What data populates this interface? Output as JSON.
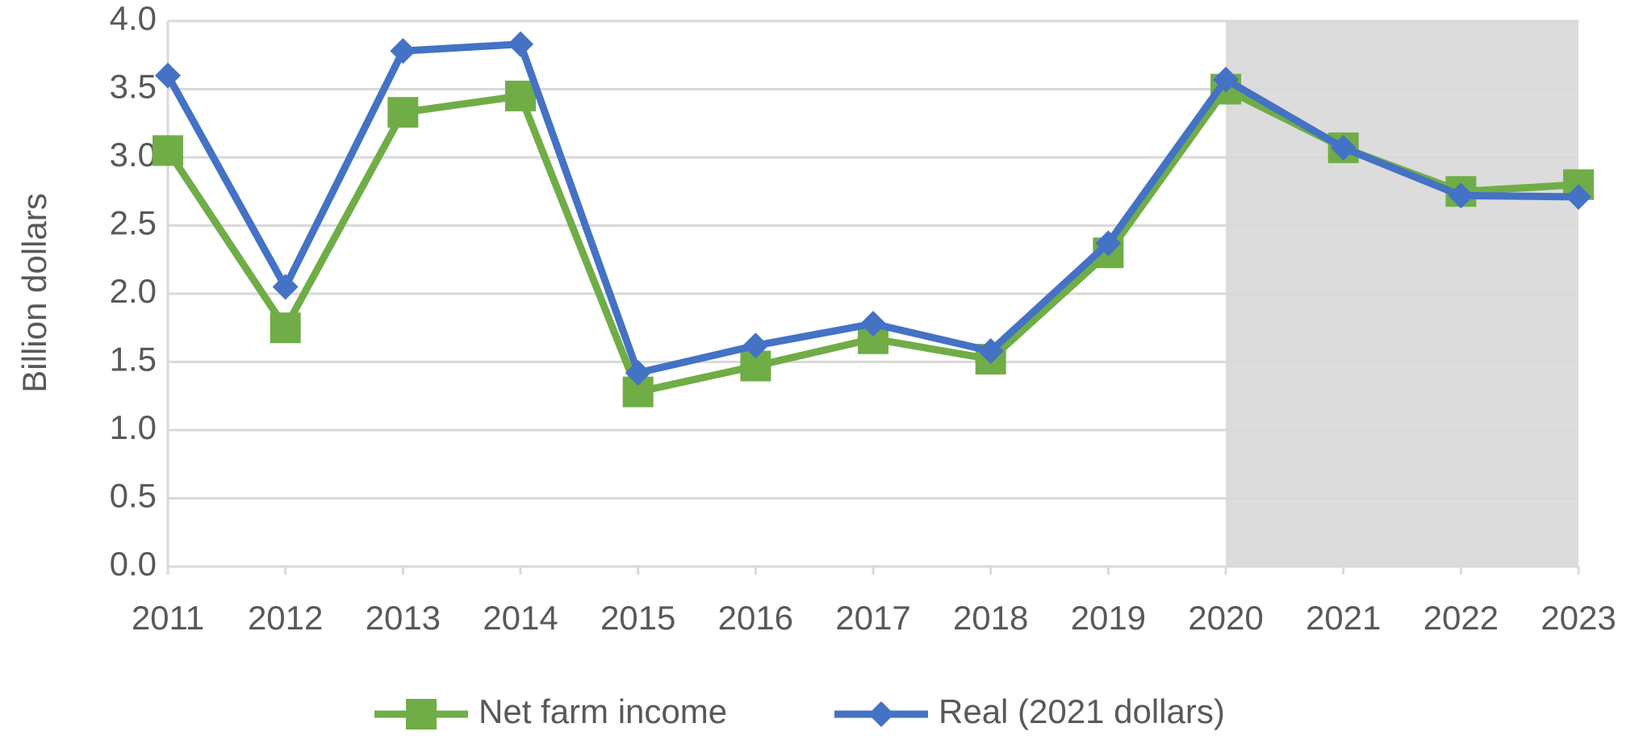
{
  "chart_data": {
    "type": "line",
    "y_label": "Billion dollars",
    "categories": [
      "2011",
      "2012",
      "2013",
      "2014",
      "2015",
      "2016",
      "2017",
      "2018",
      "2019",
      "2020",
      "2021",
      "2022",
      "2023"
    ],
    "series": [
      {
        "name": "Net farm income",
        "color": "#70ad47",
        "marker": "square",
        "values": [
          3.05,
          1.75,
          3.33,
          3.45,
          1.28,
          1.47,
          1.67,
          1.52,
          2.3,
          3.5,
          3.07,
          2.75,
          2.8
        ]
      },
      {
        "name": "Real (2021 dollars)",
        "color": "#4472c4",
        "marker": "diamond",
        "values": [
          3.6,
          2.05,
          3.78,
          3.83,
          1.42,
          1.62,
          1.78,
          1.58,
          2.37,
          3.57,
          3.07,
          2.72,
          2.71
        ]
      }
    ],
    "ylim": [
      0,
      4
    ],
    "yticks": [
      {
        "value": 0,
        "label": "0.0"
      },
      0.5,
      {
        "value": 1,
        "label": "1.0"
      },
      1.5,
      {
        "value": 2,
        "label": "2.0"
      },
      2.5,
      {
        "value": 3,
        "label": "3.0"
      },
      3.5,
      {
        "value": 4,
        "label": "4.0"
      }
    ],
    "grid": true,
    "shaded_from": "2020",
    "legend": "bottom"
  }
}
